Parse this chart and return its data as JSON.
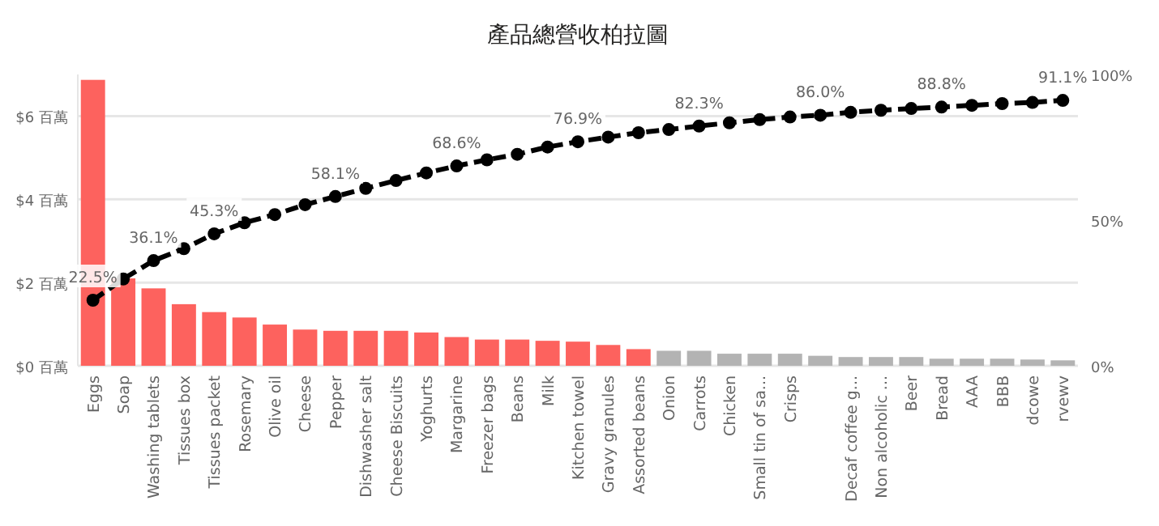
{
  "chart_data": {
    "type": "bar",
    "title": "產品總營收柏拉圖",
    "categories": [
      "Eggs",
      "Soap",
      "Washing tablets",
      "Tissues box",
      "Tissues packet",
      "Rosemary",
      "Olive oil",
      "Cheese",
      "Pepper",
      "Dishwasher salt",
      "Cheese Biscuits",
      "Yoghurts",
      "Margarine",
      "Freezer bags",
      "Beans",
      "Milk",
      "Kitchen towel",
      "Gravy granules",
      "Assorted beans",
      "Onion",
      "Carrots",
      "Chicken",
      "Small tin of sa...",
      "Crisps",
      null,
      "Decaf coffee g...",
      "Non alcoholic ...",
      "Beer",
      "Bread",
      "AAA",
      "BBB",
      "dcowe",
      "rvewv"
    ],
    "ylim": [
      0,
      7
    ],
    "yticks": [
      {
        "value": 0,
        "label": "$0 百萬"
      },
      {
        "value": 2,
        "label": "$2 百萬"
      },
      {
        "value": 4,
        "label": "$4 百萬"
      },
      {
        "value": 6,
        "label": "$6 百萬"
      }
    ],
    "y2lim": [
      0,
      100
    ],
    "y2ticks": [
      {
        "value": 0,
        "label": "0%"
      },
      {
        "value": 50,
        "label": "50%"
      },
      {
        "value": 100,
        "label": "100%"
      }
    ],
    "grid": "y",
    "series": [
      {
        "values": [
          6.87,
          2.1,
          1.86,
          1.48,
          1.29,
          1.16,
          0.99,
          0.87,
          0.84,
          0.84,
          0.84,
          0.8,
          0.69,
          0.63,
          0.63,
          0.6,
          0.58,
          0.5,
          0.4,
          0.36,
          0.36,
          0.29,
          0.29,
          0.29,
          0.24,
          0.21,
          0.21,
          0.21,
          0.17,
          0.17,
          0.17,
          0.15,
          0.13
        ],
        "colors": [
          "#fd625e",
          "#fd625e",
          "#fd625e",
          "#fd625e",
          "#fd625e",
          "#fd625e",
          "#fd625e",
          "#fd625e",
          "#fd625e",
          "#fd625e",
          "#fd625e",
          "#fd625e",
          "#fd625e",
          "#fd625e",
          "#fd625e",
          "#fd625e",
          "#fd625e",
          "#fd625e",
          "#fd625e",
          "#b3b3b3",
          "#b3b3b3",
          "#b3b3b3",
          "#b3b3b3",
          "#b3b3b3",
          "#b3b3b3",
          "#b3b3b3",
          "#b3b3b3",
          "#b3b3b3",
          "#b3b3b3",
          "#b3b3b3",
          "#b3b3b3",
          "#b3b3b3",
          "#b3b3b3"
        ]
      },
      {
        "type": "line",
        "axis": "y2",
        "color": "#000000",
        "marker": "circle",
        "line_style": "dashed",
        "values": [
          22.5,
          29.8,
          36.1,
          40.2,
          45.3,
          49.1,
          51.9,
          55.3,
          58.1,
          60.9,
          63.6,
          66.2,
          68.6,
          70.7,
          72.6,
          75.1,
          76.9,
          78.5,
          80.0,
          81.1,
          82.3,
          83.4,
          84.5,
          85.4,
          86.0,
          87.0,
          87.7,
          88.3,
          88.8,
          89.4,
          90.0,
          90.4,
          91.1
        ],
        "value_labels": [
          "22.5%",
          null,
          "36.1%",
          null,
          "45.3%",
          null,
          null,
          null,
          "58.1%",
          null,
          null,
          null,
          "68.6%",
          null,
          null,
          null,
          "76.9%",
          null,
          null,
          null,
          "82.3%",
          null,
          null,
          null,
          "86.0%",
          null,
          null,
          null,
          "88.8%",
          null,
          null,
          null,
          "91.1%"
        ]
      }
    ]
  }
}
